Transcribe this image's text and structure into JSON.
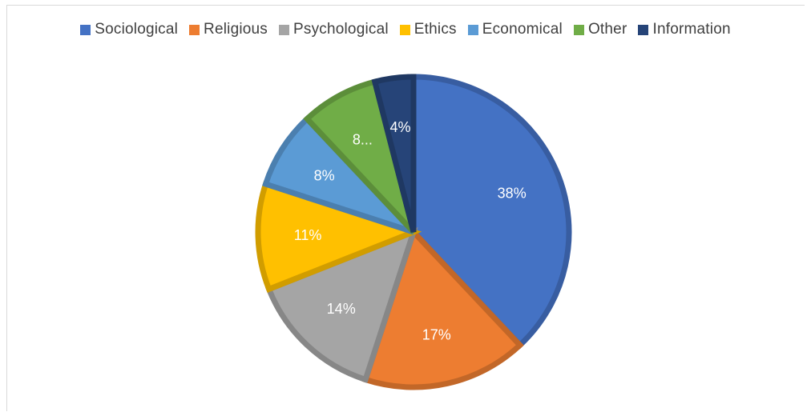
{
  "chart_data": {
    "type": "pie",
    "title": "",
    "legend_position": "top",
    "slices": [
      {
        "name": "Sociological",
        "value": 38,
        "label": "38%",
        "color": "#4472C4"
      },
      {
        "name": "Religious",
        "value": 17,
        "label": "17%",
        "color": "#ED7D31"
      },
      {
        "name": "Psychological",
        "value": 14,
        "label": "14%",
        "color": "#A5A5A5"
      },
      {
        "name": "Ethics",
        "value": 11,
        "label": "11%",
        "color": "#FFC000"
      },
      {
        "name": "Economical",
        "value": 8,
        "label": "8%",
        "color": "#5B9BD5"
      },
      {
        "name": "Other",
        "value": 8,
        "label": "8...",
        "color": "#70AD47"
      },
      {
        "name": "Information",
        "value": 4,
        "label": "4%",
        "color": "#264478"
      }
    ]
  }
}
